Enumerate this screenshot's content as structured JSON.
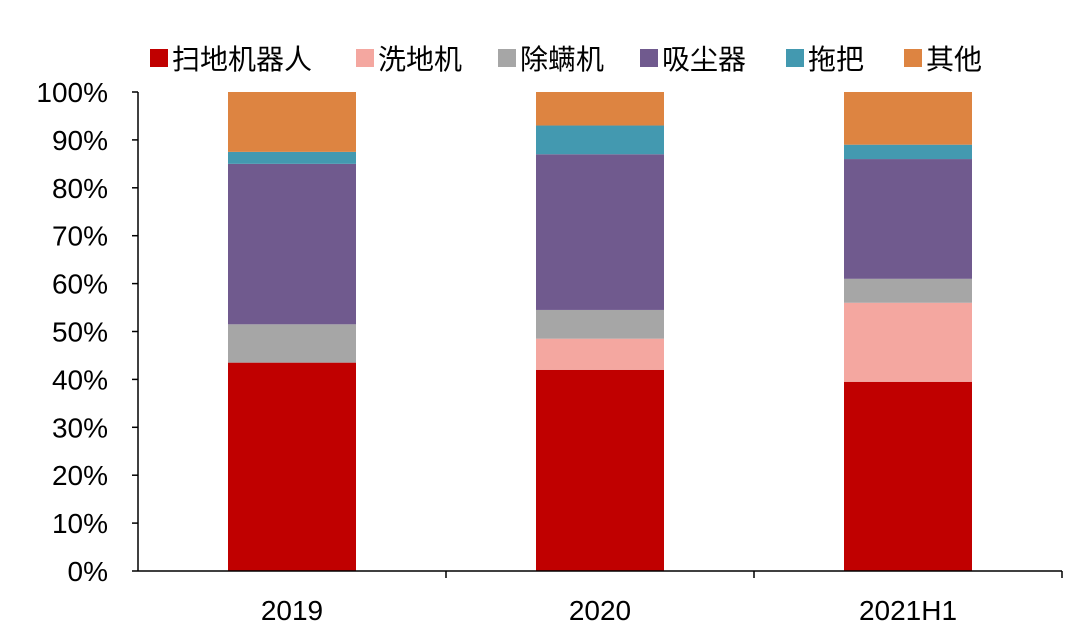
{
  "chart_data": {
    "type": "bar",
    "stacked": true,
    "categories": [
      "2019",
      "2020",
      "2021H1"
    ],
    "series": [
      {
        "name": "扫地机器人",
        "color": "#C00000",
        "values": [
          43.5,
          42.0,
          39.5
        ]
      },
      {
        "name": "洗地机",
        "color": "#F4A7A0",
        "values": [
          0.0,
          6.5,
          16.5
        ]
      },
      {
        "name": "除螨机",
        "color": "#A6A6A6",
        "values": [
          8.0,
          6.0,
          5.0
        ]
      },
      {
        "name": "吸尘器",
        "color": "#705A8E",
        "values": [
          33.5,
          32.5,
          25.0
        ]
      },
      {
        "name": "拖把",
        "color": "#4399B0",
        "values": [
          2.5,
          6.0,
          3.0
        ]
      },
      {
        "name": "其他",
        "color": "#DD8441",
        "values": [
          12.5,
          7.0,
          11.0
        ]
      }
    ],
    "ylim": [
      0,
      100
    ],
    "yticks": [
      "0%",
      "10%",
      "20%",
      "30%",
      "40%",
      "50%",
      "60%",
      "70%",
      "80%",
      "90%",
      "100%"
    ],
    "title": "",
    "xlabel": "",
    "ylabel": "",
    "legend_position": "top",
    "grid": false
  }
}
